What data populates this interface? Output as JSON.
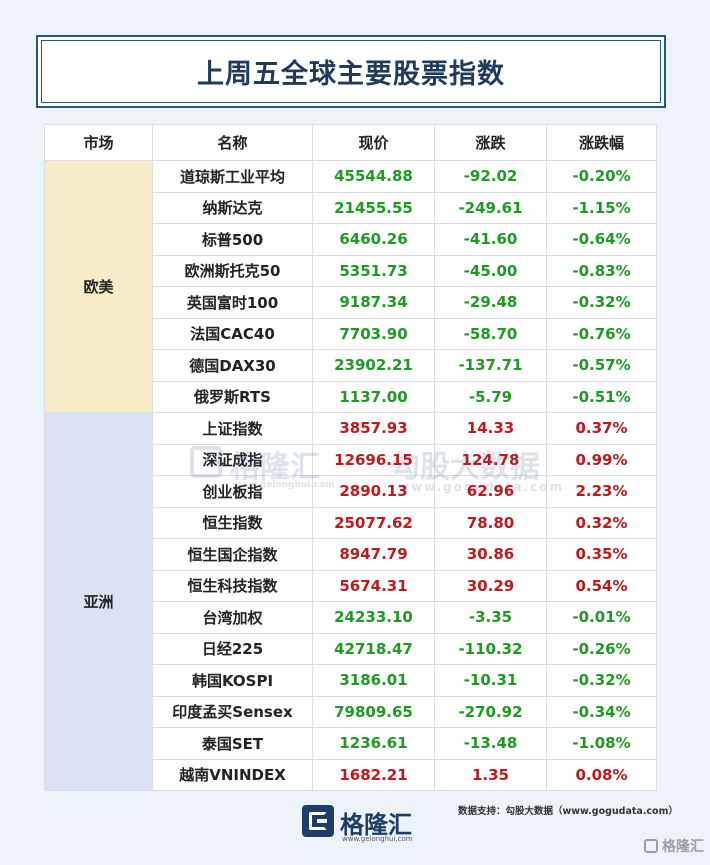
{
  "title": "上周五全球主要股票指数",
  "headers": [
    "市场",
    "名称",
    "现价",
    "涨跌",
    "涨跌幅"
  ],
  "colors": {
    "up": "#c0181b",
    "down": "#1e9a22"
  },
  "regions": [
    {
      "name": "欧美",
      "rows": [
        {
          "name": "道琼斯工业平均",
          "price": "45544.88",
          "change": "-92.02",
          "pct": "-0.20%",
          "dir": "down"
        },
        {
          "name": "纳斯达克",
          "price": "21455.55",
          "change": "-249.61",
          "pct": "-1.15%",
          "dir": "down"
        },
        {
          "name": "标普500",
          "price": "6460.26",
          "change": "-41.60",
          "pct": "-0.64%",
          "dir": "down"
        },
        {
          "name": "欧洲斯托克50",
          "price": "5351.73",
          "change": "-45.00",
          "pct": "-0.83%",
          "dir": "down"
        },
        {
          "name": "英国富时100",
          "price": "9187.34",
          "change": "-29.48",
          "pct": "-0.32%",
          "dir": "down"
        },
        {
          "name": "法国CAC40",
          "price": "7703.90",
          "change": "-58.70",
          "pct": "-0.76%",
          "dir": "down"
        },
        {
          "name": "德国DAX30",
          "price": "23902.21",
          "change": "-137.71",
          "pct": "-0.57%",
          "dir": "down"
        },
        {
          "name": "俄罗斯RTS",
          "price": "1137.00",
          "change": "-5.79",
          "pct": "-0.51%",
          "dir": "down"
        }
      ]
    },
    {
      "name": "亚洲",
      "rows": [
        {
          "name": "上证指数",
          "price": "3857.93",
          "change": "14.33",
          "pct": "0.37%",
          "dir": "up"
        },
        {
          "name": "深证成指",
          "price": "12696.15",
          "change": "124.78",
          "pct": "0.99%",
          "dir": "up"
        },
        {
          "name": "创业板指",
          "price": "2890.13",
          "change": "62.96",
          "pct": "2.23%",
          "dir": "up"
        },
        {
          "name": "恒生指数",
          "price": "25077.62",
          "change": "78.80",
          "pct": "0.32%",
          "dir": "up"
        },
        {
          "name": "恒生国企指数",
          "price": "8947.79",
          "change": "30.86",
          "pct": "0.35%",
          "dir": "up"
        },
        {
          "name": "恒生科技指数",
          "price": "5674.31",
          "change": "30.29",
          "pct": "0.54%",
          "dir": "up"
        },
        {
          "name": "台湾加权",
          "price": "24233.10",
          "change": "-3.35",
          "pct": "-0.01%",
          "dir": "down"
        },
        {
          "name": "日经225",
          "price": "42718.47",
          "change": "-110.32",
          "pct": "-0.26%",
          "dir": "down"
        },
        {
          "name": "韩国KOSPI",
          "price": "3186.01",
          "change": "-10.31",
          "pct": "-0.32%",
          "dir": "down"
        },
        {
          "name": "印度孟买Sensex",
          "price": "79809.65",
          "change": "-270.92",
          "pct": "-0.34%",
          "dir": "down"
        },
        {
          "name": "泰国SET",
          "price": "1236.61",
          "change": "-13.48",
          "pct": "-1.08%",
          "dir": "down"
        },
        {
          "name": "越南VNINDEX",
          "price": "1682.21",
          "change": "1.35",
          "pct": "0.08%",
          "dir": "up"
        }
      ]
    }
  ],
  "watermark": {
    "brand_cn": "格隆汇",
    "brand_url": "www.gelonghui.com",
    "gogu_cn": "勾股大数据",
    "gogu_url": "www.gogudata.com"
  },
  "source": "数据支持：勾股大数据（www.gogudata.com）",
  "footer": {
    "logo_cn": "格隆汇",
    "logo_url": "www.gelonghui.com",
    "logo_icon": "gelonghui-logo-icon"
  },
  "corner_watermark": "格隆汇"
}
